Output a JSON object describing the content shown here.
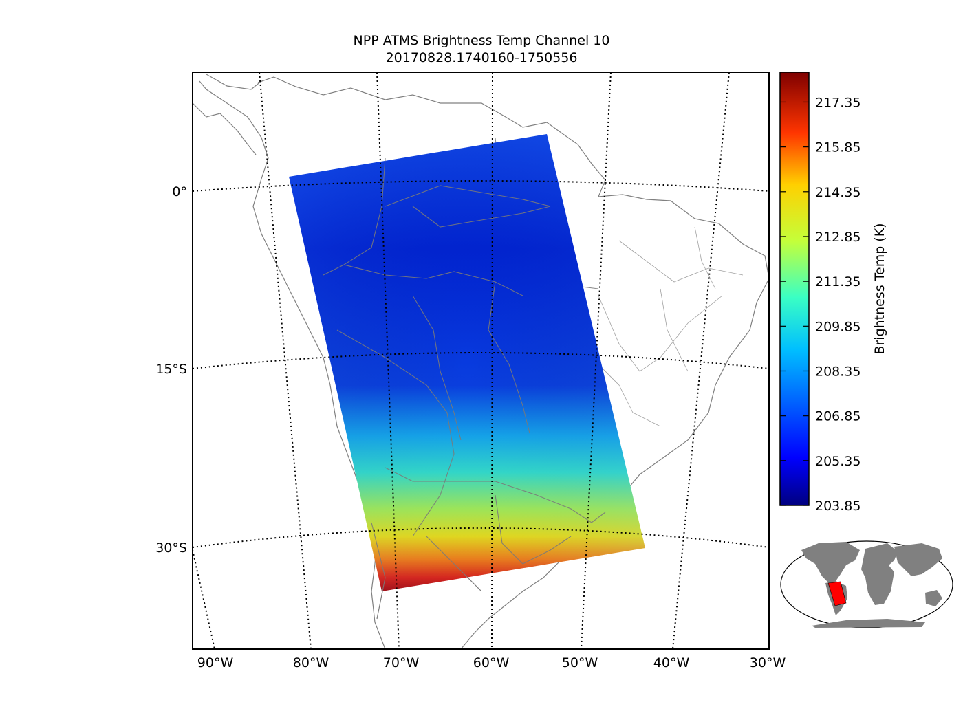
{
  "title": {
    "line1": "NPP ATMS Brightness Temp Channel 10",
    "line2": "20170828.1740160-1750556"
  },
  "axes": {
    "lat_labels": [
      "0°",
      "15°S",
      "30°S"
    ],
    "lon_labels": [
      "90°W",
      "80°W",
      "70°W",
      "60°W",
      "50°W",
      "40°W",
      "30°W"
    ]
  },
  "colorbar": {
    "label": "Brightness Temp (K)",
    "min": 203.85,
    "max": 218.35,
    "ticks": [
      "217.35",
      "215.85",
      "214.35",
      "212.85",
      "211.35",
      "209.85",
      "208.35",
      "206.85",
      "205.35",
      "203.85"
    ],
    "colormap": "jet"
  },
  "colors": {
    "coastline": "#7f7f7f",
    "grid": "#000000",
    "inset_land": "#808080",
    "inset_highlight": "#ff0000"
  },
  "inset": {
    "name": "global-locator-map"
  }
}
